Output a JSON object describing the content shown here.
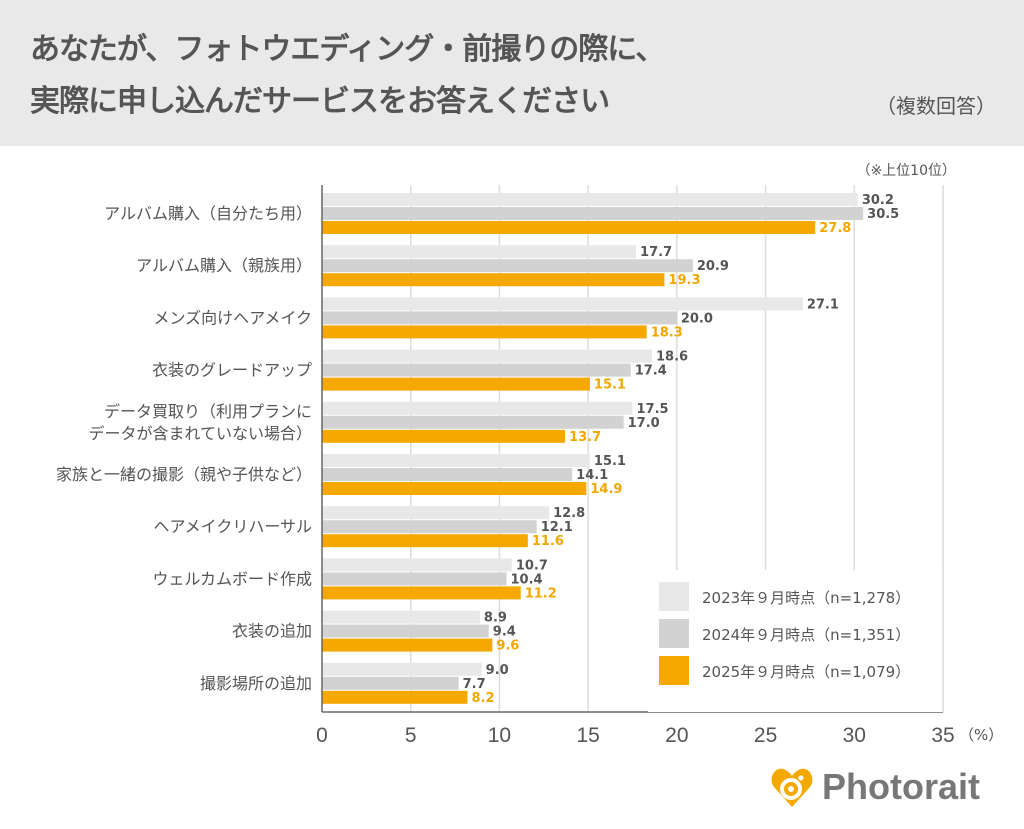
{
  "header": {
    "title_line1": "あなたが、フォトウエディング・前撮りの際に、",
    "title_line2": "実際に申し込んだサービスをお答えください",
    "subtitle": "（複数回答）"
  },
  "note": "（※上位10位）",
  "brand": "Photorait",
  "colors": {
    "s2023": "#e8e8e8",
    "s2024": "#d2d2d2",
    "s2025": "#f5a800",
    "label_dark": "#555555",
    "label_orange": "#f0a800"
  },
  "chart_data": {
    "type": "bar",
    "orientation": "horizontal",
    "categories": [
      [
        "アルバム購入（自分たち用）"
      ],
      [
        "アルバム購入（親族用）"
      ],
      [
        "メンズ向けヘアメイク"
      ],
      [
        "衣装のグレードアップ"
      ],
      [
        "データ買取り（利用プランに",
        "データが含まれていない場合）"
      ],
      [
        "家族と一緒の撮影（親や子供など）"
      ],
      [
        "ヘアメイクリハーサル"
      ],
      [
        "ウェルカムボード作成"
      ],
      [
        "衣装の追加"
      ],
      [
        "撮影場所の追加"
      ]
    ],
    "series": [
      {
        "name": "2023年９月時点（n=1,278）",
        "values": [
          30.2,
          17.7,
          27.1,
          18.6,
          17.5,
          15.1,
          12.8,
          10.7,
          8.9,
          9.0
        ],
        "labels": [
          "30.2",
          "17.7",
          "27.1",
          "18.6",
          "17.5",
          "15.1",
          "12.8",
          "10.7",
          "8.9",
          "9.0"
        ]
      },
      {
        "name": "2024年９月時点（n=1,351）",
        "values": [
          30.5,
          20.9,
          20.0,
          17.4,
          17.0,
          14.1,
          12.1,
          10.4,
          9.4,
          7.7
        ],
        "labels": [
          "30.5",
          "20.9",
          "20.0",
          "17.4",
          "17.0",
          "14.1",
          "12.1",
          "10.4",
          "9.4",
          "7.7"
        ]
      },
      {
        "name": "2025年９月時点（n=1,079）",
        "values": [
          27.8,
          19.3,
          18.3,
          15.1,
          13.7,
          14.9,
          11.6,
          11.2,
          9.6,
          8.2
        ],
        "labels": [
          "27.8",
          "19.3",
          "18.3",
          "15.1",
          "13.7",
          "14.9",
          "11.6",
          "11.2",
          "9.6",
          "8.2"
        ]
      }
    ],
    "xlim": [
      0,
      35
    ],
    "xticks": [
      "0",
      "5",
      "10",
      "15",
      "20",
      "25",
      "30",
      "35"
    ],
    "xunit": "（%）",
    "grid": true,
    "legend_position": "bottom-right"
  }
}
